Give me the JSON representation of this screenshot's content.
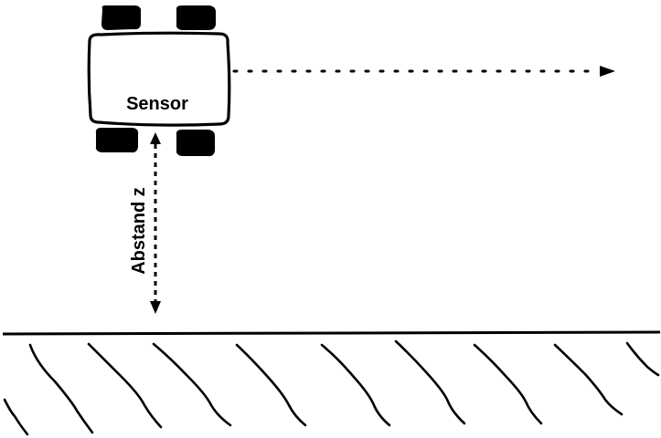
{
  "diagram": {
    "sensor_label": "Sensor",
    "distance_label": "Abstand z",
    "colors": {
      "ink": "#000000",
      "background": "#ffffff"
    }
  }
}
